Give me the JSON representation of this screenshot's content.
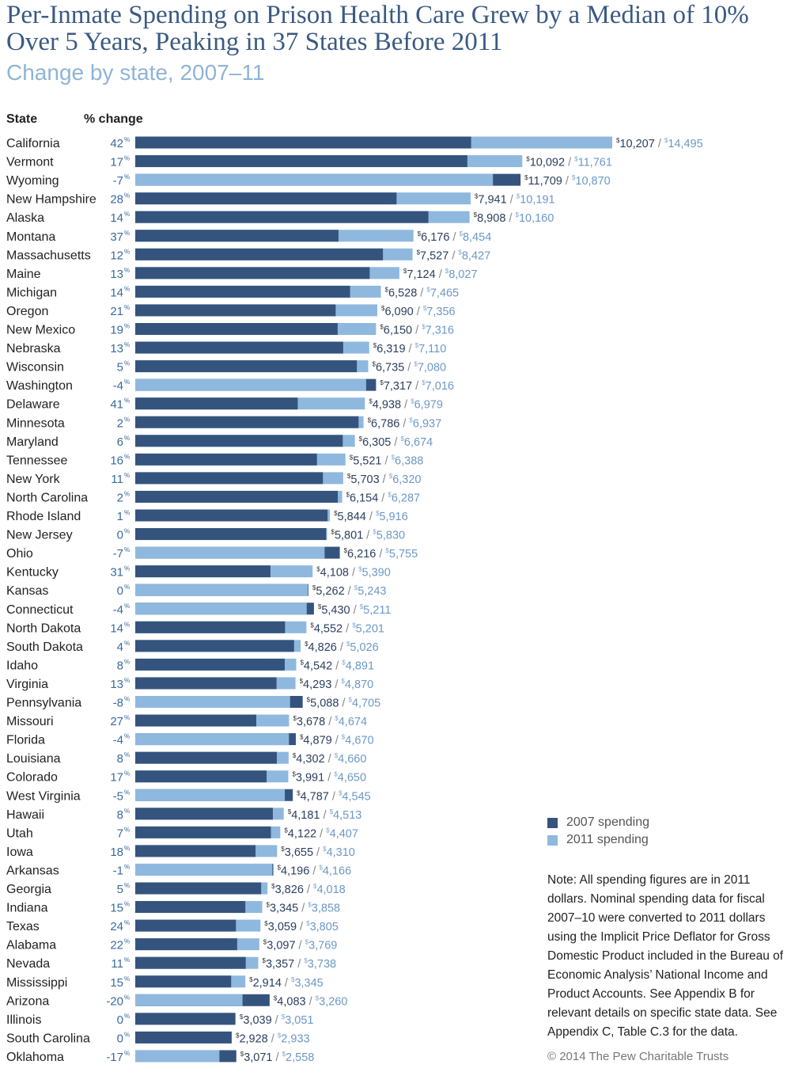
{
  "title": "Per-Inmate Spending on Prison Health Care Grew by a Median of 10% Over 5 Years, Peaking in 37 States Before 2011",
  "subtitle": "Change by state, 2007–11",
  "header": {
    "state": "State",
    "change": "% change"
  },
  "colors": {
    "spending_2007": "#34547e",
    "spending_2011": "#8fb8de",
    "change_text": "#3a6a9e",
    "title": "#3a5a82"
  },
  "chart_data": {
    "type": "bar",
    "orientation": "horizontal",
    "series": [
      {
        "name": "2007 spending"
      },
      {
        "name": "2011 spending"
      }
    ],
    "rows": [
      {
        "state": "California",
        "change": "42",
        "v2007": 10207,
        "v2011": 14495
      },
      {
        "state": "Vermont",
        "change": "17",
        "v2007": 10092,
        "v2011": 11761
      },
      {
        "state": "Wyoming",
        "change": "-7",
        "v2007": 11709,
        "v2011": 10870
      },
      {
        "state": "New Hampshire",
        "change": "28",
        "v2007": 7941,
        "v2011": 10191
      },
      {
        "state": "Alaska",
        "change": "14",
        "v2007": 8908,
        "v2011": 10160
      },
      {
        "state": "Montana",
        "change": "37",
        "v2007": 6176,
        "v2011": 8454
      },
      {
        "state": "Massachusetts",
        "change": "12",
        "v2007": 7527,
        "v2011": 8427
      },
      {
        "state": "Maine",
        "change": "13",
        "v2007": 7124,
        "v2011": 8027
      },
      {
        "state": "Michigan",
        "change": "14",
        "v2007": 6528,
        "v2011": 7465
      },
      {
        "state": "Oregon",
        "change": "21",
        "v2007": 6090,
        "v2011": 7356
      },
      {
        "state": "New Mexico",
        "change": "19",
        "v2007": 6150,
        "v2011": 7316
      },
      {
        "state": "Nebraska",
        "change": "13",
        "v2007": 6319,
        "v2011": 7110
      },
      {
        "state": "Wisconsin",
        "change": "5",
        "v2007": 6735,
        "v2011": 7080
      },
      {
        "state": "Washington",
        "change": "-4",
        "v2007": 7317,
        "v2011": 7016
      },
      {
        "state": "Delaware",
        "change": "41",
        "v2007": 4938,
        "v2011": 6979
      },
      {
        "state": "Minnesota",
        "change": "2",
        "v2007": 6786,
        "v2011": 6937
      },
      {
        "state": "Maryland",
        "change": "6",
        "v2007": 6305,
        "v2011": 6674
      },
      {
        "state": "Tennessee",
        "change": "16",
        "v2007": 5521,
        "v2011": 6388
      },
      {
        "state": "New York",
        "change": "11",
        "v2007": 5703,
        "v2011": 6320
      },
      {
        "state": "North Carolina",
        "change": "2",
        "v2007": 6154,
        "v2011": 6287
      },
      {
        "state": "Rhode Island",
        "change": "1",
        "v2007": 5844,
        "v2011": 5916
      },
      {
        "state": "New Jersey",
        "change": "0",
        "v2007": 5801,
        "v2011": 5830
      },
      {
        "state": "Ohio",
        "change": "-7",
        "v2007": 6216,
        "v2011": 5755
      },
      {
        "state": "Kentucky",
        "change": "31",
        "v2007": 4108,
        "v2011": 5390
      },
      {
        "state": "Kansas",
        "change": "0",
        "v2007": 5262,
        "v2011": 5243
      },
      {
        "state": "Connecticut",
        "change": "-4",
        "v2007": 5430,
        "v2011": 5211
      },
      {
        "state": "North Dakota",
        "change": "14",
        "v2007": 4552,
        "v2011": 5201
      },
      {
        "state": "South Dakota",
        "change": "4",
        "v2007": 4826,
        "v2011": 5026
      },
      {
        "state": "Idaho",
        "change": "8",
        "v2007": 4542,
        "v2011": 4891
      },
      {
        "state": "Virginia",
        "change": "13",
        "v2007": 4293,
        "v2011": 4870
      },
      {
        "state": "Pennsylvania",
        "change": "-8",
        "v2007": 5088,
        "v2011": 4705
      },
      {
        "state": "Missouri",
        "change": "27",
        "v2007": 3678,
        "v2011": 4674
      },
      {
        "state": "Florida",
        "change": "-4",
        "v2007": 4879,
        "v2011": 4670
      },
      {
        "state": "Louisiana",
        "change": "8",
        "v2007": 4302,
        "v2011": 4660
      },
      {
        "state": "Colorado",
        "change": "17",
        "v2007": 3991,
        "v2011": 4650
      },
      {
        "state": "West Virginia",
        "change": "-5",
        "v2007": 4787,
        "v2011": 4545
      },
      {
        "state": "Hawaii",
        "change": "8",
        "v2007": 4181,
        "v2011": 4513
      },
      {
        "state": "Utah",
        "change": "7",
        "v2007": 4122,
        "v2011": 4407
      },
      {
        "state": "Iowa",
        "change": "18",
        "v2007": 3655,
        "v2011": 4310
      },
      {
        "state": "Arkansas",
        "change": "-1",
        "v2007": 4196,
        "v2011": 4166
      },
      {
        "state": "Georgia",
        "change": "5",
        "v2007": 3826,
        "v2011": 4018
      },
      {
        "state": "Indiana",
        "change": "15",
        "v2007": 3345,
        "v2011": 3858
      },
      {
        "state": "Texas",
        "change": "24",
        "v2007": 3059,
        "v2011": 3805
      },
      {
        "state": "Alabama",
        "change": "22",
        "v2007": 3097,
        "v2011": 3769
      },
      {
        "state": "Nevada",
        "change": "11",
        "v2007": 3357,
        "v2011": 3738
      },
      {
        "state": "Mississippi",
        "change": "15",
        "v2007": 2914,
        "v2011": 3345
      },
      {
        "state": "Arizona",
        "change": "-20",
        "v2007": 4083,
        "v2011": 3260
      },
      {
        "state": "Illinois",
        "change": "0",
        "v2007": 3039,
        "v2011": 3051
      },
      {
        "state": "South Carolina",
        "change": "0",
        "v2007": 2928,
        "v2011": 2933
      },
      {
        "state": "Oklahoma",
        "change": "-17",
        "v2007": 3071,
        "v2011": 2558
      }
    ]
  },
  "legend": {
    "label_2007": "2007 spending",
    "label_2011": "2011 spending"
  },
  "note": "Note: All spending figures are in 2011 dollars. Nominal spending data for fiscal 2007–10 were converted to 2011 dollars using the Implicit Price Deflator for Gross Domestic Product included in the Bureau of Economic Analysis’ National Income and Product Accounts. See Appendix B for relevant details on specific state data. See Appendix C, Table C.3 for the data.",
  "copyright": "© 2014 The Pew Charitable Trusts"
}
